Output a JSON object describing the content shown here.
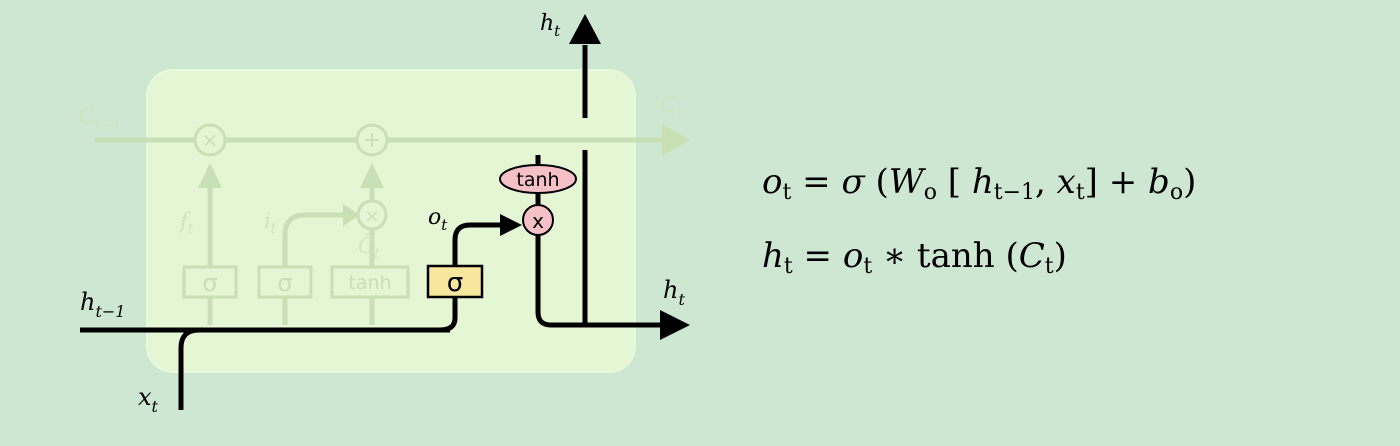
{
  "diagram": {
    "labels": {
      "c_prev": "C",
      "c_prev_sub": "t−1",
      "c_next": "C",
      "c_next_sub": "t",
      "h_prev": "h",
      "h_prev_sub": "t−1",
      "x_in": "x",
      "x_in_sub": "t",
      "h_top": "h",
      "h_top_sub": "t",
      "h_out": "h",
      "h_out_sub": "t",
      "f": "f",
      "f_sub": "t",
      "i": "i",
      "i_sub": "t",
      "c_tilde": "C̃",
      "c_tilde_sub": "t",
      "o": "o",
      "o_sub": "t"
    },
    "ops": {
      "mult": "×",
      "add": "+",
      "mult_out": "x",
      "tanh_out": "tanh"
    },
    "gates": [
      "σ",
      "σ",
      "tanh",
      "σ"
    ],
    "colors": {
      "background": "#cde7d3",
      "cell_fill": "#e4f6d4",
      "faded": "#c6dfb3",
      "faded_text": "#cfe6bd",
      "active_gate": "#f7e79e",
      "active_pink": "#f5c0c6"
    }
  },
  "equations": {
    "line1": {
      "o": "o",
      "o_sub": "t",
      "eq": " = ",
      "sigma": "σ",
      "lparen": " (",
      "W": "W",
      "W_sub": "o",
      "lbrack": " [ ",
      "h": "h",
      "h_sub": "t−1",
      "comma": ", ",
      "x": "x",
      "x_sub": "t",
      "rbrack": "]  +  ",
      "b": "b",
      "b_sub": "o",
      "rparen": ")"
    },
    "line2": {
      "h": "h",
      "h_sub": "t",
      "eq": " = ",
      "o": "o",
      "o_sub": "t",
      "star": " ∗ ",
      "tanh": "tanh",
      "lparen": " (",
      "C": "C",
      "C_sub": "t",
      "rparen": ")"
    }
  }
}
